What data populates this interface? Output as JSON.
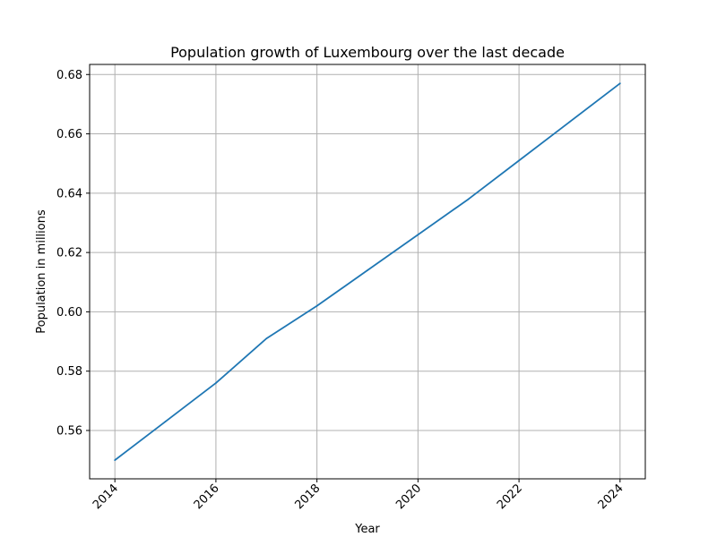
{
  "chart_data": {
    "type": "line",
    "title": "Population growth of Luxembourg over the last decade",
    "xlabel": "Year",
    "ylabel": "Population in millions",
    "x": [
      2014,
      2015,
      2016,
      2017,
      2018,
      2019,
      2020,
      2021,
      2022,
      2023,
      2024
    ],
    "series": [
      {
        "values": [
          0.55,
          0.563,
          0.576,
          0.591,
          0.602,
          0.614,
          0.626,
          0.638,
          0.651,
          0.664,
          0.677
        ],
        "color": "#1f77b4"
      }
    ],
    "xlim": [
      2013.5,
      2024.5
    ],
    "ylim": [
      0.5437,
      0.6834
    ],
    "xticks": [
      2014,
      2016,
      2018,
      2020,
      2022,
      2024
    ],
    "xtick_labels": [
      "2014",
      "2016",
      "2018",
      "2020",
      "2022",
      "2024"
    ],
    "yticks": [
      0.56,
      0.58,
      0.6,
      0.62,
      0.64,
      0.66,
      0.68
    ],
    "ytick_labels": [
      "0.56",
      "0.58",
      "0.60",
      "0.62",
      "0.64",
      "0.66",
      "0.68"
    ],
    "grid": true,
    "grid_color": "#b0b0b0"
  }
}
